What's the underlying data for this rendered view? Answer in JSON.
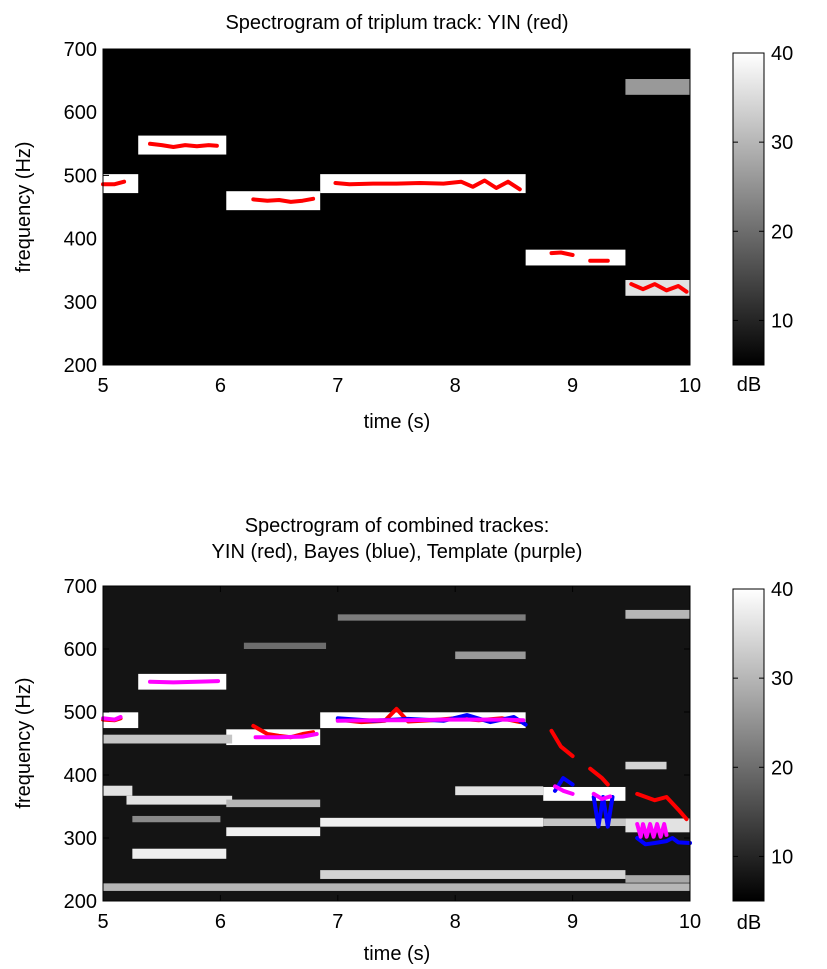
{
  "figure": {
    "panels": [
      {
        "title_lines": [
          "Spectrogram of triplum track: YIN (red)"
        ],
        "xlabel": "time (s)",
        "ylabel": "frequency (Hz)",
        "colorbar_label": "dB"
      },
      {
        "title_lines": [
          "Spectrogram of combined trackes:",
          "YIN (red), Bayes (blue), Template (purple)"
        ],
        "xlabel": "time (s)",
        "ylabel": "frequency (Hz)",
        "colorbar_label": "dB"
      }
    ]
  },
  "chart_data": [
    {
      "type": "heatmap",
      "title": "Spectrogram of triplum track: YIN (red)",
      "xlabel": "time (s)",
      "ylabel": "frequency (Hz)",
      "xlim": [
        5,
        10
      ],
      "ylim": [
        200,
        700
      ],
      "x_ticks": [
        5,
        6,
        7,
        8,
        9,
        10
      ],
      "y_ticks": [
        200,
        300,
        400,
        500,
        600,
        700
      ],
      "colormap": "gray",
      "background_color": "#000000",
      "colorbar": {
        "label": "dB",
        "range": [
          5,
          40
        ],
        "ticks": [
          10,
          20,
          30,
          40
        ]
      },
      "bands": [
        {
          "x": [
            5.0,
            5.3
          ],
          "y": 487,
          "width": 30,
          "level": 40
        },
        {
          "x": [
            5.3,
            6.05
          ],
          "y": 548,
          "width": 30,
          "level": 40
        },
        {
          "x": [
            6.05,
            6.85
          ],
          "y": 460,
          "width": 30,
          "level": 40
        },
        {
          "x": [
            6.85,
            8.6
          ],
          "y": 487,
          "width": 30,
          "level": 40
        },
        {
          "x": [
            8.6,
            9.45
          ],
          "y": 370,
          "width": 25,
          "level": 40
        },
        {
          "x": [
            9.45,
            10.0
          ],
          "y": 322,
          "width": 25,
          "level": 36
        },
        {
          "x": [
            9.45,
            10.0
          ],
          "y": 640,
          "width": 25,
          "level": 26
        }
      ],
      "series": [
        {
          "name": "YIN",
          "color": "#ff0000",
          "segments": [
            [
              [
                5.0,
                486
              ],
              [
                5.1,
                486
              ],
              [
                5.18,
                490
              ]
            ],
            [
              [
                5.4,
                550
              ],
              [
                5.5,
                548
              ],
              [
                5.6,
                545
              ],
              [
                5.7,
                548
              ],
              [
                5.8,
                546
              ],
              [
                5.9,
                548
              ],
              [
                5.97,
                547
              ]
            ],
            [
              [
                6.28,
                462
              ],
              [
                6.4,
                460
              ],
              [
                6.5,
                461
              ],
              [
                6.6,
                458
              ],
              [
                6.7,
                460
              ],
              [
                6.79,
                463
              ]
            ],
            [
              [
                6.98,
                488
              ],
              [
                7.1,
                486
              ],
              [
                7.3,
                487
              ],
              [
                7.5,
                487
              ],
              [
                7.7,
                488
              ],
              [
                7.9,
                487
              ],
              [
                8.05,
                490
              ],
              [
                8.15,
                482
              ],
              [
                8.25,
                492
              ],
              [
                8.35,
                480
              ],
              [
                8.45,
                490
              ],
              [
                8.55,
                478
              ]
            ],
            [
              [
                8.82,
                377
              ],
              [
                8.9,
                378
              ],
              [
                9.0,
                374
              ]
            ],
            [
              [
                9.15,
                365
              ],
              [
                9.3,
                365
              ]
            ],
            [
              [
                9.5,
                328
              ],
              [
                9.6,
                320
              ],
              [
                9.7,
                328
              ],
              [
                9.8,
                318
              ],
              [
                9.9,
                325
              ],
              [
                9.97,
                316
              ]
            ]
          ]
        }
      ]
    },
    {
      "type": "heatmap",
      "title": "Spectrogram of combined trackes: YIN (red), Bayes (blue), Template (purple)",
      "xlabel": "time (s)",
      "ylabel": "frequency (Hz)",
      "xlim": [
        5,
        10
      ],
      "ylim": [
        200,
        700
      ],
      "x_ticks": [
        5,
        6,
        7,
        8,
        9,
        10
      ],
      "y_ticks": [
        200,
        300,
        400,
        500,
        600,
        700
      ],
      "colormap": "gray",
      "background_color": "#141414",
      "colorbar": {
        "label": "dB",
        "range": [
          5,
          40
        ],
        "ticks": [
          10,
          20,
          30,
          40
        ]
      },
      "bands": [
        {
          "x": [
            5.0,
            5.3
          ],
          "y": 487,
          "width": 25,
          "level": 40
        },
        {
          "x": [
            5.3,
            6.05
          ],
          "y": 548,
          "width": 25,
          "level": 40
        },
        {
          "x": [
            6.05,
            6.85
          ],
          "y": 460,
          "width": 25,
          "level": 40
        },
        {
          "x": [
            6.85,
            8.6
          ],
          "y": 487,
          "width": 25,
          "level": 40
        },
        {
          "x": [
            5.0,
            6.1
          ],
          "y": 457,
          "width": 14,
          "level": 32
        },
        {
          "x": [
            5.0,
            5.25
          ],
          "y": 375,
          "width": 16,
          "level": 36
        },
        {
          "x": [
            5.2,
            6.1
          ],
          "y": 360,
          "width": 14,
          "level": 36
        },
        {
          "x": [
            5.25,
            6.0
          ],
          "y": 330,
          "width": 10,
          "level": 24
        },
        {
          "x": [
            5.25,
            6.05
          ],
          "y": 275,
          "width": 16,
          "level": 38
        },
        {
          "x": [
            6.05,
            6.85
          ],
          "y": 310,
          "width": 14,
          "level": 38
        },
        {
          "x": [
            6.05,
            6.85
          ],
          "y": 355,
          "width": 12,
          "level": 30
        },
        {
          "x": [
            6.2,
            6.9
          ],
          "y": 605,
          "width": 10,
          "level": 20
        },
        {
          "x": [
            6.85,
            8.75
          ],
          "y": 325,
          "width": 14,
          "level": 38
        },
        {
          "x": [
            6.85,
            9.45
          ],
          "y": 242,
          "width": 14,
          "level": 34
        },
        {
          "x": [
            8.0,
            8.75
          ],
          "y": 375,
          "width": 14,
          "level": 36
        },
        {
          "x": [
            7.0,
            8.6
          ],
          "y": 650,
          "width": 10,
          "level": 22
        },
        {
          "x": [
            8.0,
            8.6
          ],
          "y": 590,
          "width": 12,
          "level": 26
        },
        {
          "x": [
            8.75,
            9.45
          ],
          "y": 370,
          "width": 22,
          "level": 40
        },
        {
          "x": [
            8.75,
            9.45
          ],
          "y": 325,
          "width": 12,
          "level": 32
        },
        {
          "x": [
            9.45,
            10.0
          ],
          "y": 320,
          "width": 22,
          "level": 36
        },
        {
          "x": [
            9.45,
            9.8
          ],
          "y": 415,
          "width": 12,
          "level": 34
        },
        {
          "x": [
            9.45,
            10.0
          ],
          "y": 655,
          "width": 14,
          "level": 30
        },
        {
          "x": [
            9.45,
            10.0
          ],
          "y": 235,
          "width": 12,
          "level": 28
        },
        {
          "x": [
            5.0,
            10.0
          ],
          "y": 222,
          "width": 12,
          "level": 30
        }
      ],
      "series": [
        {
          "name": "YIN",
          "color": "#ff0000",
          "segments": [
            [
              [
                5.0,
                488
              ],
              [
                5.1,
                487
              ],
              [
                5.15,
                490
              ]
            ],
            [
              [
                6.28,
                478
              ],
              [
                6.4,
                465
              ],
              [
                6.5,
                462
              ],
              [
                6.6,
                460
              ],
              [
                6.7,
                465
              ],
              [
                6.79,
                468
              ]
            ],
            [
              [
                7.0,
                488
              ],
              [
                7.2,
                484
              ],
              [
                7.4,
                486
              ],
              [
                7.5,
                505
              ],
              [
                7.6,
                485
              ],
              [
                7.8,
                487
              ],
              [
                8.0,
                490
              ],
              [
                8.2,
                487
              ],
              [
                8.4,
                490
              ],
              [
                8.55,
                484
              ]
            ],
            [
              [
                8.82,
                470
              ],
              [
                8.9,
                445
              ],
              [
                9.0,
                430
              ]
            ],
            [
              [
                9.15,
                410
              ],
              [
                9.25,
                395
              ],
              [
                9.3,
                385
              ]
            ],
            [
              [
                9.55,
                370
              ],
              [
                9.7,
                360
              ],
              [
                9.8,
                365
              ],
              [
                9.9,
                345
              ],
              [
                9.97,
                330
              ]
            ]
          ]
        },
        {
          "name": "Bayes",
          "color": "#0000ff",
          "segments": [
            [
              [
                7.0,
                490
              ],
              [
                7.3,
                486
              ],
              [
                7.6,
                489
              ],
              [
                7.9,
                486
              ],
              [
                8.1,
                495
              ],
              [
                8.3,
                484
              ],
              [
                8.5,
                492
              ],
              [
                8.6,
                480
              ]
            ],
            [
              [
                8.85,
                375
              ],
              [
                8.92,
                395
              ],
              [
                9.0,
                385
              ]
            ],
            [
              [
                9.18,
                365
              ],
              [
                9.22,
                318
              ],
              [
                9.26,
                365
              ],
              [
                9.3,
                318
              ],
              [
                9.34,
                365
              ]
            ],
            [
              [
                9.55,
                300
              ],
              [
                9.62,
                290
              ],
              [
                9.7,
                292
              ],
              [
                9.8,
                295
              ],
              [
                9.85,
                300
              ],
              [
                9.9,
                293
              ],
              [
                10.0,
                292
              ]
            ]
          ]
        },
        {
          "name": "Template",
          "color": "#ff00ff",
          "segments": [
            [
              [
                5.0,
                490
              ],
              [
                5.1,
                488
              ],
              [
                5.15,
                492
              ]
            ],
            [
              [
                5.4,
                548
              ],
              [
                5.6,
                547
              ],
              [
                5.8,
                548
              ],
              [
                5.98,
                549
              ]
            ],
            [
              [
                6.3,
                460
              ],
              [
                6.5,
                460
              ],
              [
                6.7,
                461
              ],
              [
                6.82,
                465
              ]
            ],
            [
              [
                7.0,
                486
              ],
              [
                7.3,
                487
              ],
              [
                7.6,
                487
              ],
              [
                7.9,
                488
              ],
              [
                8.2,
                488
              ],
              [
                8.4,
                488
              ],
              [
                8.58,
                487
              ]
            ],
            [
              [
                8.85,
                382
              ],
              [
                8.92,
                375
              ],
              [
                9.0,
                370
              ]
            ],
            [
              [
                9.18,
                370
              ],
              [
                9.25,
                362
              ],
              [
                9.32,
                366
              ]
            ],
            [
              [
                9.55,
                322
              ],
              [
                9.58,
                302
              ],
              [
                9.6,
                322
              ],
              [
                9.63,
                302
              ],
              [
                9.66,
                322
              ],
              [
                9.69,
                302
              ],
              [
                9.72,
                322
              ],
              [
                9.75,
                302
              ],
              [
                9.78,
                322
              ],
              [
                9.8,
                305
              ]
            ]
          ]
        }
      ]
    }
  ]
}
